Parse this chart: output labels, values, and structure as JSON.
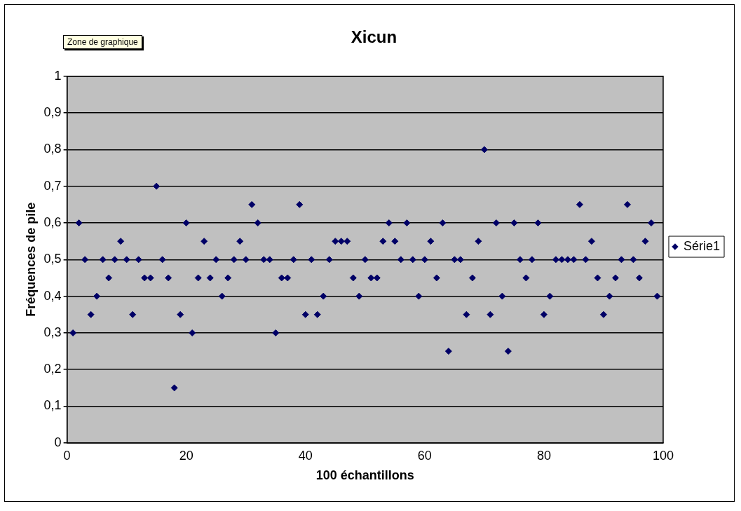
{
  "chart_data": {
    "type": "scatter",
    "title": "Xicun",
    "xlabel": "100 échantillons",
    "ylabel": "Fréquences de pile",
    "annotations": [
      "Zone de graphique"
    ],
    "x": [
      1,
      2,
      3,
      4,
      5,
      6,
      7,
      8,
      9,
      10,
      11,
      12,
      13,
      14,
      15,
      16,
      17,
      18,
      19,
      20,
      21,
      22,
      23,
      24,
      25,
      26,
      27,
      28,
      29,
      30,
      31,
      32,
      33,
      34,
      35,
      36,
      37,
      38,
      39,
      40,
      41,
      42,
      43,
      44,
      45,
      46,
      47,
      48,
      49,
      50,
      51,
      52,
      53,
      54,
      55,
      56,
      57,
      58,
      59,
      60,
      61,
      62,
      63,
      64,
      65,
      66,
      67,
      68,
      69,
      70,
      71,
      72,
      73,
      74,
      75,
      76,
      77,
      78,
      79,
      80,
      81,
      82,
      83,
      84,
      85,
      86,
      87,
      88,
      89,
      90,
      91,
      92,
      93,
      94,
      95,
      96,
      97,
      98,
      99
    ],
    "series": [
      {
        "name": "Série1",
        "color": "#000066",
        "values": [
          0.3,
          0.6,
          0.5,
          0.35,
          0.4,
          0.5,
          0.45,
          0.5,
          0.55,
          0.5,
          0.35,
          0.5,
          0.45,
          0.45,
          0.7,
          0.5,
          0.45,
          0.15,
          0.35,
          0.6,
          0.3,
          0.45,
          0.55,
          0.45,
          0.5,
          0.4,
          0.45,
          0.5,
          0.55,
          0.5,
          0.65,
          0.6,
          0.5,
          0.5,
          0.3,
          0.45,
          0.45,
          0.5,
          0.65,
          0.35,
          0.5,
          0.35,
          0.4,
          0.5,
          0.55,
          0.55,
          0.55,
          0.45,
          0.4,
          0.5,
          0.45,
          0.45,
          0.55,
          0.6,
          0.55,
          0.5,
          0.6,
          0.5,
          0.4,
          0.5,
          0.55,
          0.45,
          0.6,
          0.25,
          0.5,
          0.5,
          0.35,
          0.45,
          0.55,
          0.8,
          0.35,
          0.6,
          0.4,
          0.25,
          0.6,
          0.5,
          0.45,
          0.5,
          0.6,
          0.35,
          0.4,
          0.5,
          0.5,
          0.5,
          0.5,
          0.65,
          0.5,
          0.55,
          0.45,
          0.35,
          0.4,
          0.45,
          0.5,
          0.65,
          0.5,
          0.45,
          0.55,
          0.6,
          0.4
        ]
      }
    ],
    "xlim": [
      0,
      100
    ],
    "xticks": [
      0,
      20,
      40,
      60,
      80,
      100
    ],
    "ylim": [
      0,
      1
    ],
    "yticks": [
      0,
      {
        "value": 0.1,
        "label": "0,1"
      },
      {
        "value": 0.2,
        "label": "0,2"
      },
      {
        "value": 0.3,
        "label": "0,3"
      },
      {
        "value": 0.4,
        "label": "0,4"
      },
      {
        "value": 0.5,
        "label": "0,5"
      },
      {
        "value": 0.6,
        "label": "0,6"
      },
      {
        "value": 0.7,
        "label": "0,7"
      },
      {
        "value": 0.8,
        "label": "0,8"
      },
      {
        "value": 0.9,
        "label": "0,9"
      },
      1
    ],
    "grid": "y",
    "legend": "right",
    "marker": "diamond"
  }
}
